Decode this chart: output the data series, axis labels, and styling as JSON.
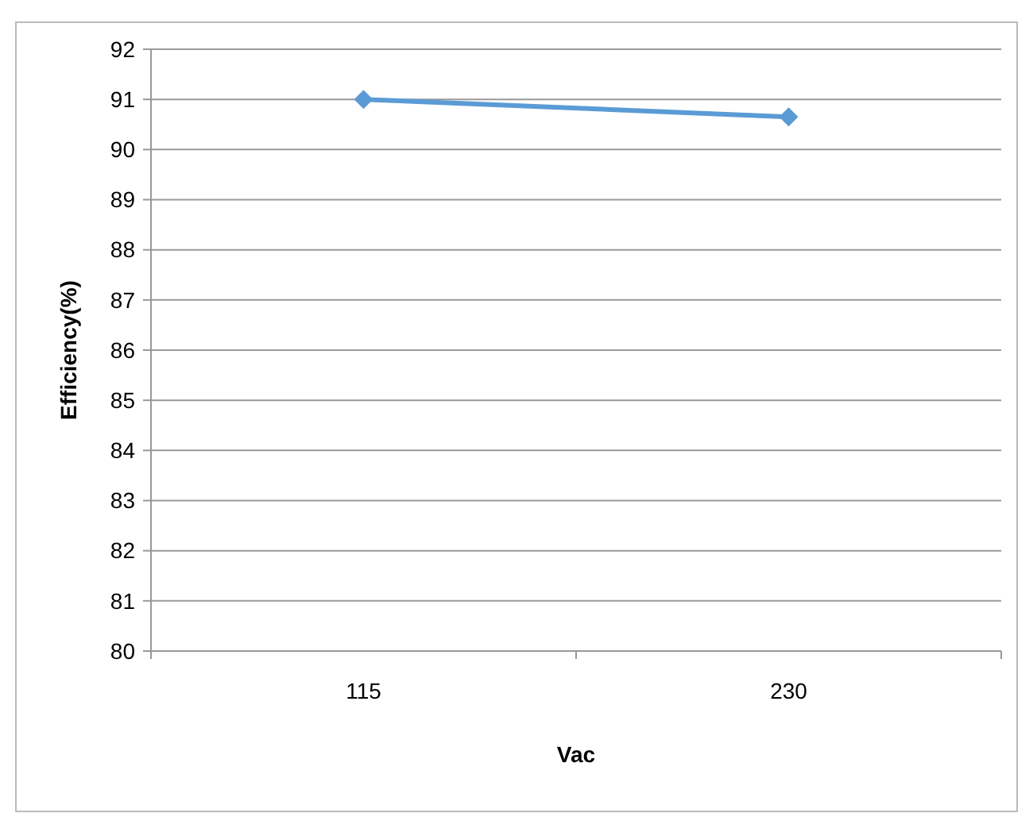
{
  "chart_data": {
    "type": "line",
    "categories": [
      "115",
      "230"
    ],
    "xlabel": "Vac",
    "ylabel": "Efficiency(%)",
    "series": [
      {
        "color": "#5b9bd5",
        "values": [
          91,
          90.65
        ]
      }
    ],
    "ylim": [
      80,
      92
    ],
    "yticks": [
      80,
      81,
      82,
      83,
      84,
      85,
      86,
      87,
      88,
      89,
      90,
      91,
      92
    ],
    "grid": "y",
    "marker": "diamond",
    "line_style": "solid"
  }
}
